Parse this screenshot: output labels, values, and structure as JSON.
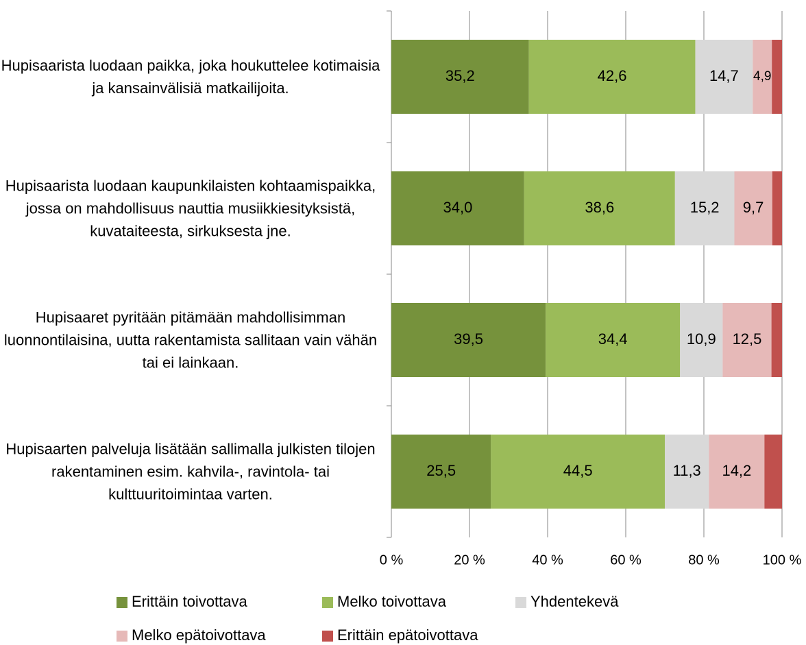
{
  "chart_data": {
    "type": "stacked-barh",
    "categories": [
      "Hupisaarista luodaan paikka, joka houkuttelee kotimaisia ja kansainvälisiä matkailijoita.",
      "Hupisaarista luodaan kaupunkilaisten kohtaamispaikka, jossa on mahdollisuus nauttia musiikkiesityksistä, kuvataiteesta, sirkuksesta jne.",
      "Hupisaaret pyritään pitämään mahdollisimman luonnontilaisina, uutta rakentamista sallitaan vain vähän tai ei lainkaan.",
      "Hupisaarten palveluja lisätään sallimalla julkisten tilojen rakentaminen esim. kahvila-, ravintola- tai kulttuuritoimintaa varten."
    ],
    "series": [
      {
        "name": "Erittäin toivottava",
        "color": "#76923c",
        "values": [
          35.2,
          34.0,
          39.5,
          25.5
        ],
        "value_labels": [
          "35,2",
          "34,0",
          "39,5",
          "25,5"
        ]
      },
      {
        "name": "Melko toivottava",
        "color": "#9bbb59",
        "values": [
          42.6,
          38.6,
          34.4,
          44.5
        ],
        "value_labels": [
          "42,6",
          "38,6",
          "34,4",
          "44,5"
        ]
      },
      {
        "name": "Yhdentekevä",
        "color": "#d9d9d9",
        "values": [
          14.7,
          15.2,
          10.9,
          11.3
        ],
        "value_labels": [
          "14,7",
          "15,2",
          "10,9",
          "11,3"
        ]
      },
      {
        "name": "Melko epätoivottava",
        "color": "#e6b9b8",
        "values": [
          4.9,
          9.7,
          12.5,
          14.2
        ],
        "value_labels": [
          "4,9",
          "9,7",
          "12,5",
          "14,2"
        ]
      },
      {
        "name": "Erittäin epätoivottava",
        "color": "#c0504d",
        "values": [
          2.6,
          2.5,
          2.7,
          4.5
        ]
      }
    ],
    "xlim": [
      0,
      100
    ],
    "xticks": [
      {
        "value": 0,
        "label": "0 %"
      },
      {
        "value": 20,
        "label": "20 %"
      },
      {
        "value": 40,
        "label": "40 %"
      },
      {
        "value": 60,
        "label": "60 %"
      },
      {
        "value": 80,
        "label": "80 %"
      },
      {
        "value": 100,
        "label": "100 %"
      }
    ],
    "grid": true,
    "legend": "bottom"
  }
}
